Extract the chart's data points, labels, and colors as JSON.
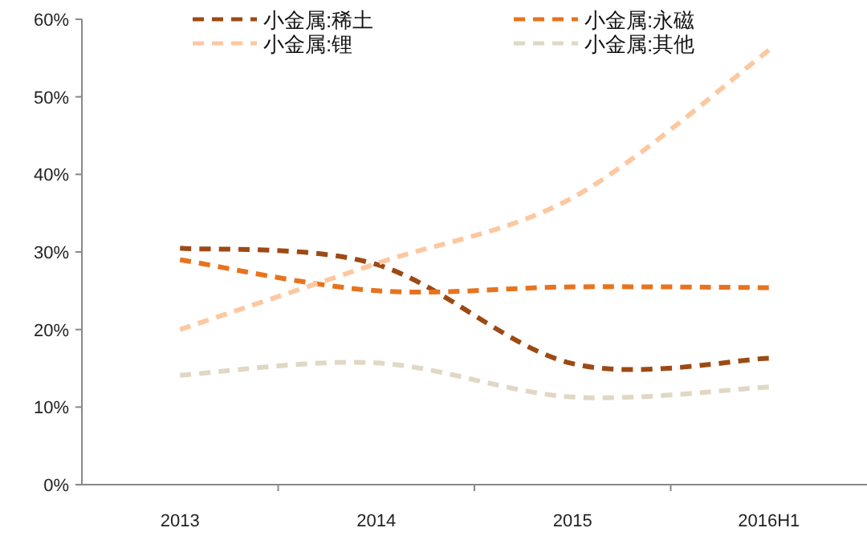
{
  "chart_data": {
    "type": "line",
    "categories": [
      "2013",
      "2014",
      "2015",
      "2016H1"
    ],
    "series": [
      {
        "name": "小金属:稀土",
        "color": "#9c4a14",
        "values": [
          30.5,
          28.4,
          15.6,
          16.3
        ]
      },
      {
        "name": "小金属:永磁",
        "color": "#e8731e",
        "values": [
          29,
          25,
          25.5,
          25.4
        ]
      },
      {
        "name": "小金属:锂",
        "color": "#fcc8a0",
        "values": [
          20,
          28.5,
          37,
          56
        ]
      },
      {
        "name": "小金属:其他",
        "color": "#e0d8c4",
        "values": [
          14.1,
          15.7,
          11.3,
          12.6
        ]
      }
    ],
    "ylim": [
      0,
      60
    ],
    "yticks": [
      {
        "value": 0,
        "label": "0%"
      },
      {
        "value": 10,
        "label": "10%"
      },
      {
        "value": 20,
        "label": "20%"
      },
      {
        "value": 30,
        "label": "30%"
      },
      {
        "value": 40,
        "label": "40%"
      },
      {
        "value": 50,
        "label": "50%"
      },
      {
        "value": 60,
        "label": "60%"
      }
    ],
    "grid": false,
    "legend": "top",
    "line_style": "dashed",
    "marker": "none"
  }
}
